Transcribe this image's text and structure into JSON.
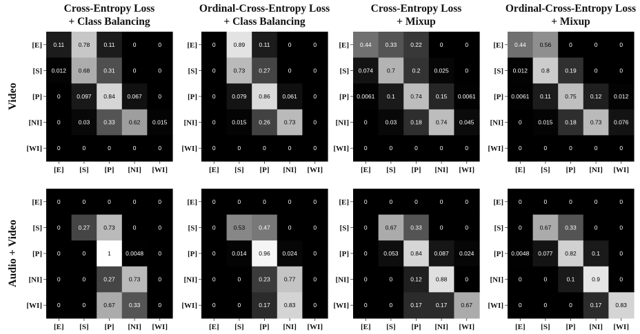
{
  "row_labels": [
    "Video",
    "Audio + Video"
  ],
  "column_titles": [
    [
      "Cross-Entropy Loss",
      "+ Class Balancing"
    ],
    [
      "Ordinal-Cross-Entropy Loss",
      "+ Class Balancing"
    ],
    [
      "Cross-Entropy Loss",
      "+ Mixup"
    ],
    [
      "Ordinal-Cross-Entropy Loss",
      "+ Mixup"
    ]
  ],
  "chart_data": [
    {
      "type": "heatmap",
      "row": "Video",
      "title": "Cross-Entropy Loss + Class Balancing",
      "categories": [
        "[E]",
        "[S]",
        "[P]",
        "[NI]",
        "[WI]"
      ],
      "vlim": [
        0,
        1
      ],
      "values": [
        [
          "0.11",
          "0.78",
          "0.11",
          "0",
          "0"
        ],
        [
          "0.012",
          "0.68",
          "0.31",
          "0",
          "0"
        ],
        [
          "0",
          "0.097",
          "0.84",
          "0.067",
          "0"
        ],
        [
          "0",
          "0.03",
          "0.33",
          "0.62",
          "0.015"
        ],
        [
          "0",
          "0",
          "0",
          "0",
          "0"
        ]
      ]
    },
    {
      "type": "heatmap",
      "row": "Video",
      "title": "Ordinal-Cross-Entropy Loss + Class Balancing",
      "categories": [
        "[E]",
        "[S]",
        "[P]",
        "[NI]",
        "[WI]"
      ],
      "vlim": [
        0,
        1
      ],
      "values": [
        [
          "0",
          "0.89",
          "0.11",
          "0",
          "0"
        ],
        [
          "0",
          "0.73",
          "0.27",
          "0",
          "0"
        ],
        [
          "0",
          "0.079",
          "0.86",
          "0.061",
          "0"
        ],
        [
          "0",
          "0.015",
          "0.26",
          "0.73",
          "0"
        ],
        [
          "0",
          "0",
          "0",
          "0",
          "0"
        ]
      ]
    },
    {
      "type": "heatmap",
      "row": "Video",
      "title": "Cross-Entropy Loss + Mixup",
      "categories": [
        "[E]",
        "[S]",
        "[P]",
        "[NI]",
        "[WI]"
      ],
      "vlim": [
        0,
        1
      ],
      "values": [
        [
          "0.44",
          "0.33",
          "0.22",
          "0",
          "0"
        ],
        [
          "0.074",
          "0.7",
          "0.2",
          "0.025",
          "0"
        ],
        [
          "0.0061",
          "0.1",
          "0.74",
          "0.15",
          "0.0061"
        ],
        [
          "0",
          "0.03",
          "0.18",
          "0.74",
          "0.045"
        ],
        [
          "0",
          "0",
          "0",
          "0",
          "0"
        ]
      ]
    },
    {
      "type": "heatmap",
      "row": "Video",
      "title": "Ordinal-Cross-Entropy Loss + Mixup",
      "categories": [
        "[E]",
        "[S]",
        "[P]",
        "[NI]",
        "[WI]"
      ],
      "vlim": [
        0,
        1
      ],
      "values": [
        [
          "0.44",
          "0.56",
          "0",
          "0",
          "0"
        ],
        [
          "0.012",
          "0.8",
          "0.19",
          "0",
          "0"
        ],
        [
          "0.0061",
          "0.11",
          "0.75",
          "0.12",
          "0.012"
        ],
        [
          "0",
          "0.015",
          "0.18",
          "0.73",
          "0.076"
        ],
        [
          "0",
          "0",
          "0",
          "0",
          "0"
        ]
      ]
    },
    {
      "type": "heatmap",
      "row": "Audio + Video",
      "title": "Cross-Entropy Loss + Class Balancing",
      "categories": [
        "[E]",
        "[S]",
        "[P]",
        "[NI]",
        "[WI]"
      ],
      "vlim": [
        0,
        1
      ],
      "values": [
        [
          "0",
          "0",
          "0",
          "0",
          "0"
        ],
        [
          "0",
          "0.27",
          "0.73",
          "0",
          "0"
        ],
        [
          "0",
          "0",
          "1",
          "0.0048",
          "0"
        ],
        [
          "0",
          "0",
          "0.27",
          "0.73",
          "0"
        ],
        [
          "0",
          "0",
          "0.67",
          "0.33",
          "0"
        ]
      ]
    },
    {
      "type": "heatmap",
      "row": "Audio + Video",
      "title": "Ordinal-Cross-Entropy Loss + Class Balancing",
      "categories": [
        "[E]",
        "[S]",
        "[P]",
        "[NI]",
        "[WI]"
      ],
      "vlim": [
        0,
        1
      ],
      "values": [
        [
          "0",
          "0",
          "0",
          "0",
          "0"
        ],
        [
          "0",
          "0.53",
          "0.47",
          "0",
          "0"
        ],
        [
          "0",
          "0.014",
          "0.96",
          "0.024",
          "0"
        ],
        [
          "0",
          "0",
          "0.23",
          "0.77",
          "0"
        ],
        [
          "0",
          "0",
          "0.17",
          "0.83",
          "0"
        ]
      ]
    },
    {
      "type": "heatmap",
      "row": "Audio + Video",
      "title": "Cross-Entropy Loss + Mixup",
      "categories": [
        "[E]",
        "[S]",
        "[P]",
        "[NI]",
        "[WI]"
      ],
      "vlim": [
        0,
        1
      ],
      "values": [
        [
          "0",
          "0",
          "0",
          "0",
          "0"
        ],
        [
          "0",
          "0.67",
          "0.33",
          "0",
          "0"
        ],
        [
          "0",
          "0.053",
          "0.84",
          "0.087",
          "0.024"
        ],
        [
          "0",
          "0",
          "0.12",
          "0.88",
          "0"
        ],
        [
          "0",
          "0",
          "0.17",
          "0.17",
          "0.67"
        ]
      ]
    },
    {
      "type": "heatmap",
      "row": "Audio + Video",
      "title": "Ordinal-Cross-Entropy Loss + Mixup",
      "categories": [
        "[E]",
        "[S]",
        "[P]",
        "[NI]",
        "[WI]"
      ],
      "vlim": [
        0,
        1
      ],
      "values": [
        [
          "0",
          "0",
          "0",
          "0",
          "0"
        ],
        [
          "0",
          "0.67",
          "0.33",
          "0",
          "0"
        ],
        [
          "0.0048",
          "0.077",
          "0.82",
          "0.1",
          "0"
        ],
        [
          "0",
          "0",
          "0.1",
          "0.9",
          "0"
        ],
        [
          "0",
          "0",
          "0",
          "0.17",
          "0.83"
        ]
      ]
    }
  ]
}
